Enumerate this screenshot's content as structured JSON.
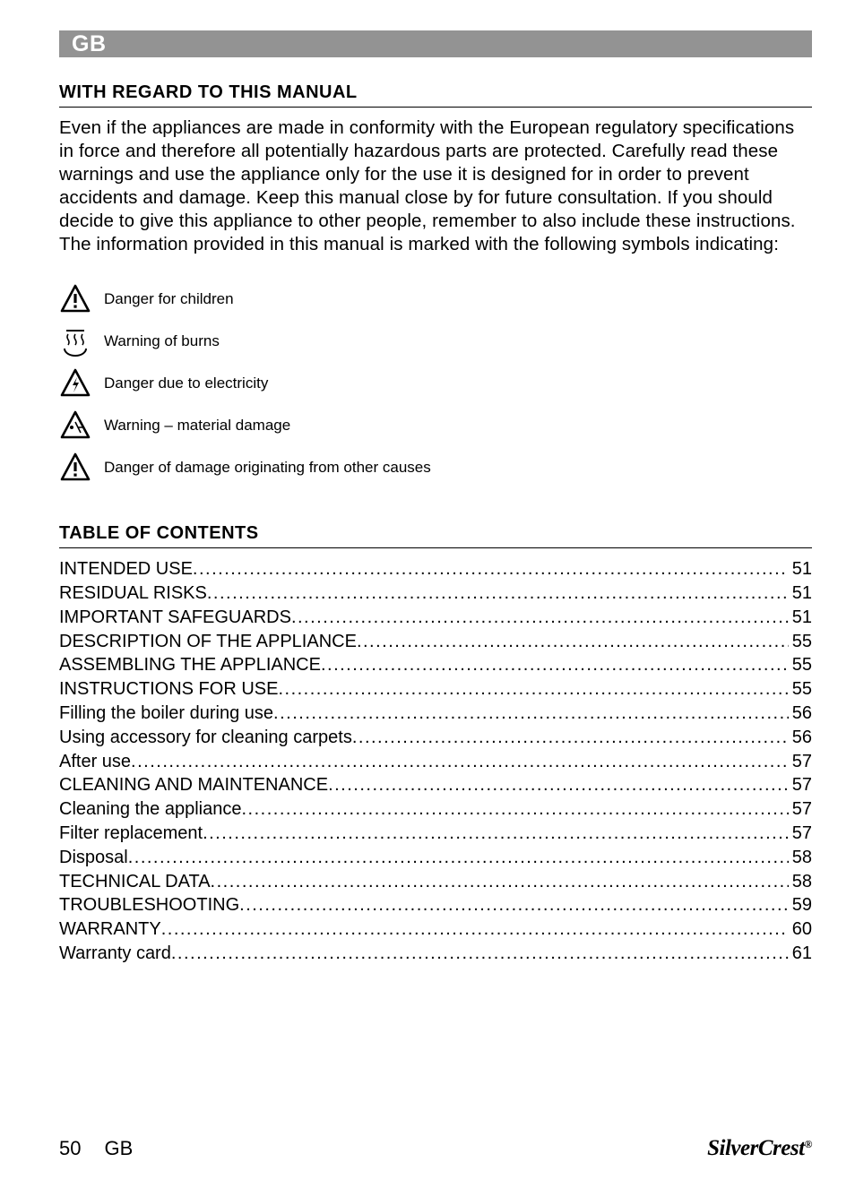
{
  "header": {
    "badge": "GB"
  },
  "section1": {
    "title": "WITH REGARD TO THIS MANUAL",
    "paragraph1": "Even if the appliances are made in conformity with the European regulatory specifications in force and therefore all potentially hazardous parts are protected. Carefully read these warnings and use the appliance only for the use it is designed for in order to prevent accidents and damage. Keep this manual close by for future consultation. If you should decide to give this appliance to other people, remember to also include these instructions.",
    "paragraph2": "The information provided in this manual is marked with the following symbols indicating:"
  },
  "symbols": [
    {
      "icon": "warning-triangle",
      "label": "Danger for children"
    },
    {
      "icon": "burn-hot",
      "label": "Warning of burns"
    },
    {
      "icon": "electric-triangle",
      "label": "Danger due to electricity"
    },
    {
      "icon": "material-triangle",
      "label": "Warning – material damage"
    },
    {
      "icon": "warning-triangle",
      "label": "Danger of damage originating from other causes"
    }
  ],
  "toc": {
    "title": "TABLE OF CONTENTS",
    "items": [
      {
        "title": "INTENDED USE",
        "page": "51"
      },
      {
        "title": "RESIDUAL RISKS",
        "page": "51"
      },
      {
        "title": "IMPORTANT SAFEGUARDS",
        "page": "51"
      },
      {
        "title": "DESCRIPTION OF THE APPLIANCE",
        "page": "55"
      },
      {
        "title": "ASSEMBLING THE APPLIANCE",
        "page": "55"
      },
      {
        "title": "INSTRUCTIONS FOR USE",
        "page": "55"
      },
      {
        "title": "Filling the boiler during use",
        "page": "56"
      },
      {
        "title": "Using accessory for cleaning carpets",
        "page": "56"
      },
      {
        "title": "After use",
        "page": "57"
      },
      {
        "title": "CLEANING AND MAINTENANCE",
        "page": "57"
      },
      {
        "title": "Cleaning the appliance",
        "page": "57"
      },
      {
        "title": "Filter replacement",
        "page": "57"
      },
      {
        "title": "Disposal",
        "page": "58"
      },
      {
        "title": "TECHNICAL DATA",
        "page": "58"
      },
      {
        "title": "TROUBLESHOOTING",
        "page": "59"
      },
      {
        "title": "WARRANTY",
        "page": "60"
      },
      {
        "title": "Warranty card",
        "page": "61"
      }
    ]
  },
  "footer": {
    "page_number": "50",
    "lang": "GB",
    "brand_main": "SilverCrest",
    "brand_reg": "®"
  },
  "colors": {
    "header_bar": "#939393",
    "header_text": "#ffffff",
    "body_text": "#000000",
    "background": "#ffffff"
  },
  "typography": {
    "title_fontsize_pt": 15,
    "body_fontsize_pt": 15,
    "symbol_label_fontsize_pt": 13,
    "toc_fontsize_pt": 15,
    "footer_fontsize_pt": 16
  }
}
